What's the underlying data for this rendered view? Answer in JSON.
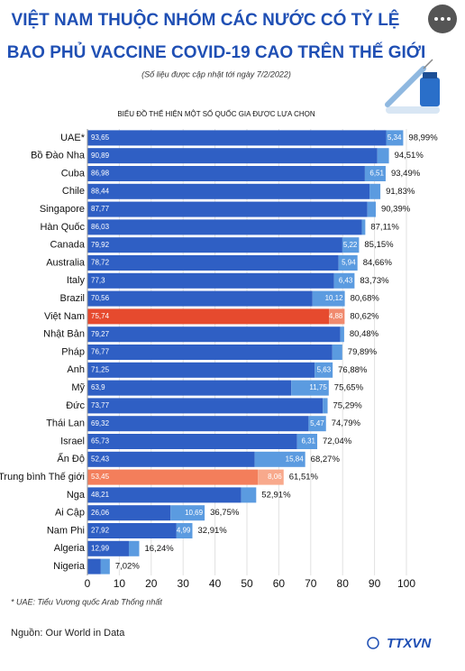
{
  "chart_data": {
    "type": "stacked-bar-horizontal",
    "title_lines": [
      "VIỆT NAM THUỘC NHÓM CÁC NƯỚC CÓ TỶ LỆ",
      "BAO PHỦ VACCINE COVID-19 CAO TRÊN THẾ GIỚI"
    ],
    "subtitle": "(Số liệu được cập nhật tới ngày 7/2/2022)",
    "chart_subtitle": "BIỂU ĐỒ THỂ HIỆN MỘT SỐ QUỐC GIA ĐƯỢC LỰA CHỌN",
    "note": "* UAE: Tiểu Vương quốc Arab Thống nhất",
    "source": "Nguồn: Our World in Data",
    "logo": "TTXVN",
    "categories": [
      "UAE*",
      "Bồ Đào Nha",
      "Cuba",
      "Chile",
      "Singapore",
      "Hàn Quốc",
      "Canada",
      "Australia",
      "Italy",
      "Brazil",
      "Việt Nam",
      "Nhật Bản",
      "Pháp",
      "Anh",
      "Mỹ",
      "Đức",
      "Thái Lan",
      "Israel",
      "Ấn Độ",
      "Trung bình Thế giới",
      "Nga",
      "Ai Cập",
      "Nam Phi",
      "Algeria",
      "Nigeria"
    ],
    "series": [
      {
        "color": "#2f5fc4",
        "colors": [
          "#2f5fc4",
          "#2f5fc4",
          "#2f5fc4",
          "#2f5fc4",
          "#2f5fc4",
          "#2f5fc4",
          "#2f5fc4",
          "#2f5fc4",
          "#2f5fc4",
          "#2f5fc4",
          "#e64a2e",
          "#2f5fc4",
          "#2f5fc4",
          "#2f5fc4",
          "#2f5fc4",
          "#2f5fc4",
          "#2f5fc4",
          "#2f5fc4",
          "#2f5fc4",
          "#f37e5b",
          "#2f5fc4",
          "#2f5fc4",
          "#2f5fc4",
          "#2f5fc4",
          "#2f5fc4"
        ],
        "values": [
          93.65,
          90.89,
          86.98,
          88.44,
          87.77,
          86.03,
          79.92,
          78.72,
          77.3,
          70.56,
          75.74,
          79.27,
          76.77,
          71.25,
          63.9,
          73.77,
          69.32,
          65.73,
          52.43,
          53.45,
          48.21,
          26.06,
          27.92,
          12.99,
          4.2
        ],
        "value_labels": [
          "93,65",
          "90,89",
          "86,98",
          "88,44",
          "87,77",
          "86,03",
          "79,92",
          "78,72",
          "77,3",
          "70,56",
          "75,74",
          "79,27",
          "76,77",
          "71,25",
          "63,9",
          "73,77",
          "69,32",
          "65,73",
          "52,43",
          "53,45",
          "48,21",
          "26,06",
          "27,92",
          "12,99",
          null
        ]
      },
      {
        "color": "#5b9be0",
        "colors": [
          "#5b9be0",
          "#5b9be0",
          "#5b9be0",
          "#5b9be0",
          "#5b9be0",
          "#5b9be0",
          "#5b9be0",
          "#5b9be0",
          "#5b9be0",
          "#5b9be0",
          "#f08a6e",
          "#5b9be0",
          "#5b9be0",
          "#5b9be0",
          "#5b9be0",
          "#5b9be0",
          "#5b9be0",
          "#5b9be0",
          "#5b9be0",
          "#f8a98c",
          "#5b9be0",
          "#5b9be0",
          "#5b9be0",
          "#5b9be0",
          "#5b9be0"
        ],
        "values": [
          5.34,
          3.62,
          6.51,
          3.39,
          2.62,
          1.08,
          5.22,
          5.94,
          6.43,
          10.12,
          4.88,
          1.21,
          3.12,
          5.63,
          11.75,
          1.52,
          5.47,
          6.31,
          15.84,
          8.06,
          4.7,
          10.69,
          4.99,
          3.25,
          2.82
        ],
        "value_labels": [
          "5,34",
          null,
          "6,51",
          null,
          null,
          null,
          "5,22",
          "5,94",
          "6,43",
          "10,12",
          "4,88",
          null,
          null,
          "5,63",
          "11,75",
          null,
          "5,47",
          "6,31",
          "15,84",
          "8,06",
          null,
          "10,69",
          "4,99",
          null,
          null
        ]
      }
    ],
    "total_labels": [
      "98,99%",
      "94,51%",
      "93,49%",
      "91,83%",
      "90,39%",
      "87,11%",
      "85,15%",
      "84,66%",
      "83,73%",
      "80,68%",
      "80,62%",
      "80,48%",
      "79,89%",
      "76,88%",
      "75,65%",
      "75,29%",
      "74,79%",
      "72,04%",
      "68,27%",
      "61,51%",
      "52,91%",
      "36,75%",
      "32,91%",
      "16,24%",
      "7,02%"
    ],
    "xlim": [
      0,
      100
    ],
    "xticks": [
      0,
      10,
      20,
      30,
      40,
      50,
      60,
      70,
      80,
      90,
      100
    ],
    "grid": true
  }
}
